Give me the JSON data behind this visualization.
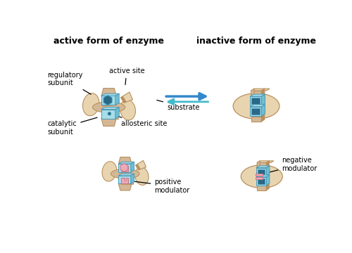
{
  "title_left": "active form of enzyme",
  "title_right": "inactive form of enzyme",
  "bg_color": "#ffffff",
  "tan_light": "#E8D5B0",
  "tan_mid": "#D4B896",
  "tan_dark": "#B89060",
  "blue_light": "#A8DDE8",
  "blue_mid": "#70BED0",
  "blue_dark": "#4899B8",
  "blue_hex_dark": "#2A6888",
  "pink_light": "#F0A8B8",
  "pink_dark": "#C07888",
  "arrow_blue": "#3388CC",
  "arrow_cyan": "#44BBCC",
  "labels": {
    "regulatory_subunit": "regulatory\nsubunit",
    "active_site": "active site",
    "substrate": "substrate",
    "allosteric_site": "allosteric site",
    "catalytic_subunit": "catalytic\nsubunit",
    "positive_modulator": "positive\nmodulator",
    "negative_modulator": "negative\nmodulator"
  },
  "font_size": 7,
  "title_font_size": 9
}
